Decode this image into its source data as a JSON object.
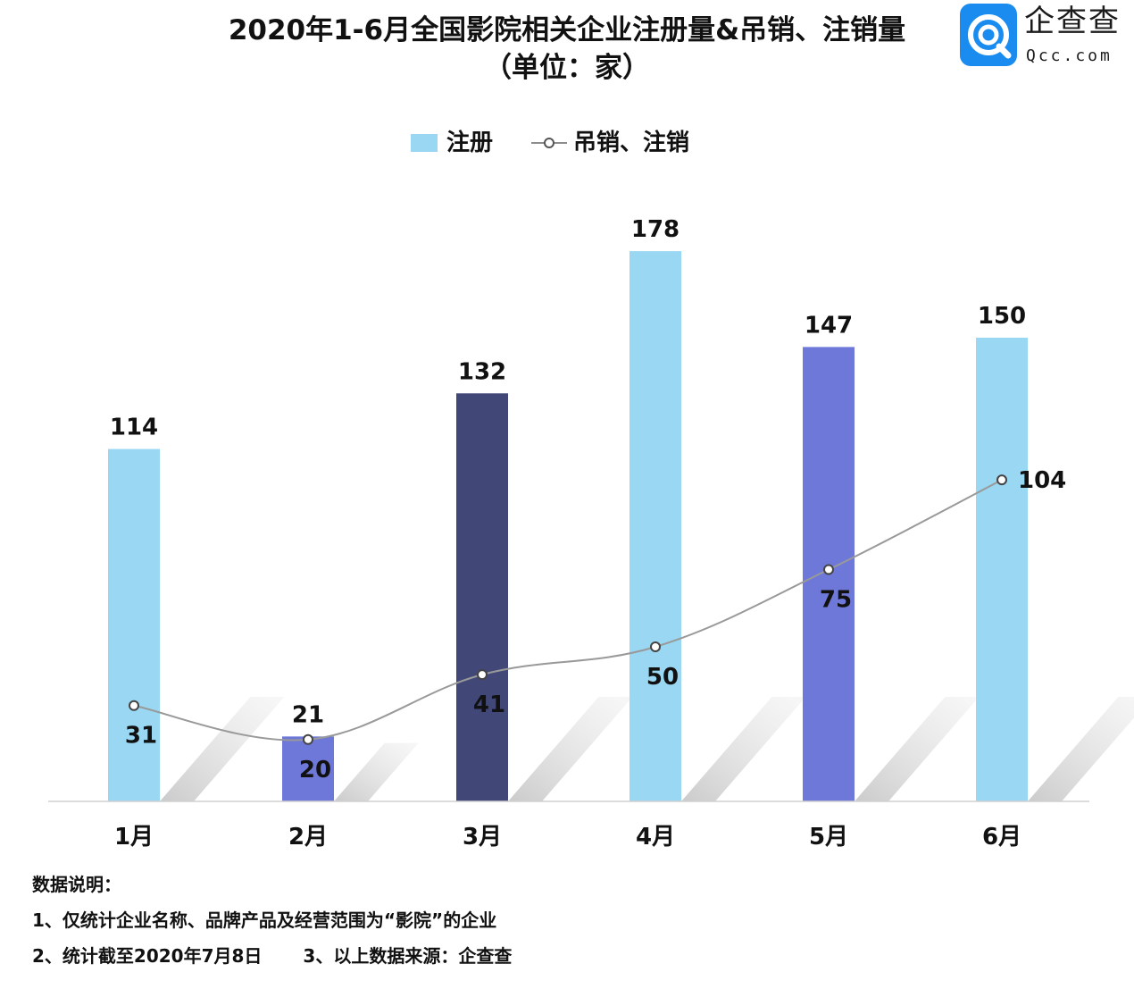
{
  "header": {
    "title_line1": "2020年1-6月全国影院相关企业注册量&吊销、注销量",
    "title_line2": "（单位：家）"
  },
  "logo": {
    "brand_name": "企查查",
    "brand_domain": "Qcc.com",
    "accent_color": "#1a8cf0"
  },
  "chart_data": {
    "type": "bar",
    "categories": [
      "1月",
      "2月",
      "3月",
      "4月",
      "5月",
      "6月"
    ],
    "series": [
      {
        "name": "注册",
        "type": "bar",
        "values": [
          114,
          21,
          132,
          178,
          147,
          150
        ],
        "colors": [
          "#99d7f2",
          "#6e78d8",
          "#414878",
          "#99d7f2",
          "#6e78d8",
          "#99d7f2"
        ]
      },
      {
        "name": "吊销、注销",
        "type": "line",
        "values": [
          31,
          20,
          41,
          50,
          75,
          104
        ],
        "color": "#8c8c8c"
      }
    ],
    "ylim": [
      0,
      200
    ],
    "grid": false,
    "legend_position": "top-center"
  },
  "notes": {
    "heading": "数据说明：",
    "line1": "1、仅统计企业名称、品牌产品及经营范围为“影院”的企业",
    "line2": "2、统计截至2020年7月8日",
    "line3": "3、以上数据来源：企查查"
  }
}
